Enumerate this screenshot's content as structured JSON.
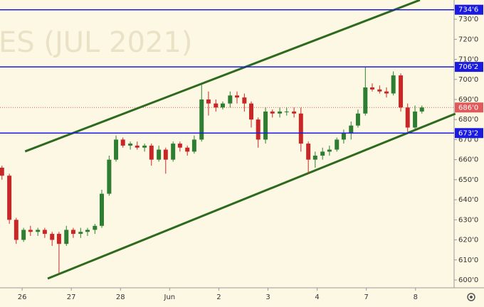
{
  "chart_data": {
    "type": "candlestick",
    "watermark": "ES (JUL 2021)",
    "up_color": "#2e7d32",
    "down_color": "#c62828",
    "x": [
      -0.41,
      -0.26,
      -0.12,
      0.03,
      0.17,
      0.32,
      0.46,
      0.61,
      0.75,
      0.9,
      1.04,
      1.19,
      1.33,
      1.48,
      1.62,
      1.77,
      1.91,
      2.05,
      2.2,
      2.34,
      2.49,
      2.63,
      2.78,
      2.92,
      3.07,
      3.21,
      3.36,
      3.5,
      3.65,
      3.79,
      3.94,
      4.08,
      4.23,
      4.37,
      4.52,
      4.66,
      4.8,
      4.95,
      5.09,
      5.24,
      5.38,
      5.53,
      5.67,
      5.82,
      5.96,
      6.11,
      6.25,
      6.4,
      6.54,
      6.69,
      6.83,
      6.98,
      7.12,
      7.27,
      7.41,
      7.55,
      7.7,
      7.84,
      7.99,
      8.13
    ],
    "open": [
      656,
      652,
      630,
      620,
      625,
      624,
      625,
      623,
      623,
      618,
      625,
      623,
      624,
      625,
      627,
      643,
      660,
      670,
      667,
      667,
      666,
      667,
      660,
      665,
      660,
      668,
      666,
      664,
      670,
      690,
      688,
      686,
      688,
      692,
      691,
      688,
      680,
      670,
      684,
      683,
      684,
      684,
      683,
      668,
      660,
      662,
      664,
      665,
      670,
      673,
      677,
      683,
      696,
      695,
      694,
      693,
      702,
      686,
      676,
      684
    ],
    "high": [
      657,
      653,
      631,
      626,
      627,
      626,
      626,
      624,
      624,
      627,
      626,
      626,
      626,
      628,
      645,
      662,
      672,
      671,
      669,
      669,
      668,
      668,
      667,
      666,
      669,
      669,
      667,
      672,
      698,
      694,
      690,
      689,
      694,
      694,
      693,
      689,
      681,
      686,
      685,
      686,
      686,
      686,
      686,
      669,
      664,
      666,
      667,
      671,
      675,
      679,
      685,
      706,
      698,
      697,
      696,
      704,
      703,
      688,
      687,
      687
    ],
    "low": [
      650,
      628,
      618,
      619,
      622,
      622,
      621,
      617,
      603,
      617,
      621,
      621,
      622,
      623,
      626,
      642,
      659,
      666,
      665,
      665,
      664,
      657,
      659,
      653,
      659,
      664,
      662,
      663,
      669,
      682,
      684,
      685,
      686,
      688,
      684,
      676,
      666,
      668,
      681,
      681,
      682,
      681,
      664,
      653,
      656,
      660,
      662,
      664,
      668,
      670,
      676,
      682,
      694,
      693,
      691,
      692,
      684,
      674,
      675,
      683
    ],
    "close": [
      652,
      630,
      620,
      625,
      624,
      625,
      623,
      620,
      618,
      625,
      623,
      624,
      625,
      627,
      643,
      660,
      670,
      667,
      668,
      666,
      667,
      660,
      665,
      660,
      668,
      666,
      664,
      670,
      690,
      688,
      686,
      688,
      692,
      691,
      688,
      680,
      670,
      684,
      683,
      684,
      684,
      683,
      668,
      660,
      662,
      664,
      665,
      670,
      673,
      677,
      683,
      696,
      695,
      694,
      693,
      702,
      686,
      676,
      684,
      686
    ],
    "xlim": [
      -0.45,
      8.785
    ],
    "ylim": [
      596.1,
      739.6
    ],
    "xticks": [
      {
        "value": 0,
        "label": "26"
      },
      {
        "value": 1,
        "label": "27"
      },
      {
        "value": 2,
        "label": "28"
      },
      {
        "value": 3,
        "label": "Jun"
      },
      {
        "value": 4,
        "label": "2"
      },
      {
        "value": 5,
        "label": "3"
      },
      {
        "value": 6,
        "label": "4"
      },
      {
        "value": 7,
        "label": "7"
      },
      {
        "value": 8,
        "label": "8"
      }
    ],
    "yticks": [
      {
        "value": 600,
        "label": "600'0"
      },
      {
        "value": 610,
        "label": "610'0"
      },
      {
        "value": 620,
        "label": "620'0"
      },
      {
        "value": 630,
        "label": "630'0"
      },
      {
        "value": 640,
        "label": "640'0"
      },
      {
        "value": 650,
        "label": "650'0"
      },
      {
        "value": 660,
        "label": "660'0"
      },
      {
        "value": 670,
        "label": "670'0"
      },
      {
        "value": 680,
        "label": "680'0"
      },
      {
        "value": 690,
        "label": "690'0"
      },
      {
        "value": 700,
        "label": "700'0"
      },
      {
        "value": 710,
        "label": "710'0"
      },
      {
        "value": 720,
        "label": "720'0"
      },
      {
        "value": 730,
        "label": "730'0"
      }
    ],
    "levels": [
      {
        "value": 734.75,
        "label": "734'6",
        "color": "#1a1ae0"
      },
      {
        "value": 706.25,
        "label": "706'2",
        "color": "#1a1ae0"
      },
      {
        "value": 673.25,
        "label": "673'2",
        "color": "#1a1ae0"
      }
    ],
    "last_price": {
      "value": 686,
      "label": "686'0",
      "color": "#e05a5a"
    },
    "trend_lines": [
      {
        "x": [
          0.06,
          8.09
        ],
        "y": [
          664.1,
          739.6
        ],
        "color": "#2d6a1e"
      },
      {
        "x": [
          0.52,
          8.81
        ],
        "y": [
          600.7,
          682.9
        ],
        "color": "#2d6a1e"
      }
    ]
  }
}
